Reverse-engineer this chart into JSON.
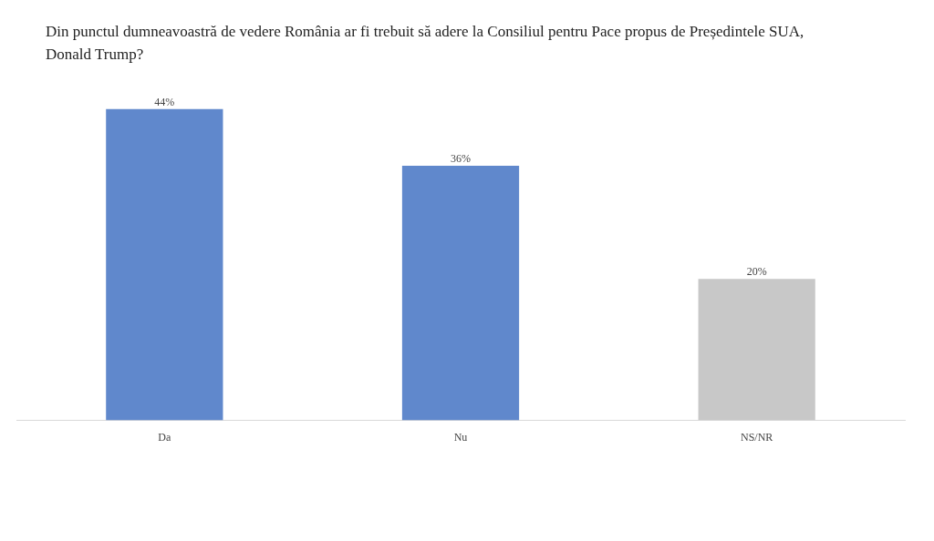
{
  "chart_data": {
    "type": "bar",
    "title": "Din punctul dumneavoastră de vedere România ar fi trebuit să adere la Consiliul pentru Pace propus de Președintele SUA, Donald Trump?",
    "categories": [
      "Da",
      "Nu",
      "NS/NR"
    ],
    "values": [
      44,
      36,
      20
    ],
    "colors": [
      "#6088cc",
      "#6088cc",
      "#c8c8c8"
    ],
    "data_labels": true,
    "value_labels": [
      "44%",
      "36%",
      "20%"
    ],
    "grid": false,
    "legend": false
  }
}
